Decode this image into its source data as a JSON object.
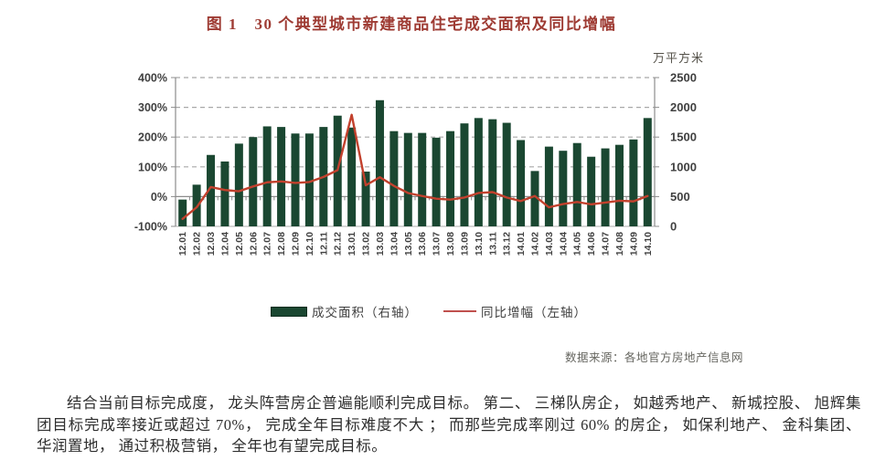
{
  "document": {
    "figure_title": "图 1　30 个典型城市新建商品住宅成交面积及同比增幅",
    "source_note": "数据来源：各地官方房地产信息网",
    "body_paragraph": "结合当前目标完成度， 龙头阵营房企普遍能顺利完成目标。 第二、 三梯队房企， 如越秀地产、 新城控股、 旭辉集团目标完成率接近或超过 70%， 完成全年目标难度不大 ； 而那些完成率刚过 60% 的房企， 如保利地产、 金科集团、 华润置地， 通过积极营销， 全年也有望完成目标。"
  },
  "chart_data": {
    "type": "bar",
    "subtype": "combo-bar-line-dual-axis",
    "title": "图 1　30 个典型城市新建商品住宅成交面积及同比增幅",
    "categories": [
      "12.01",
      "12.02",
      "12.03",
      "12.04",
      "12.05",
      "12.06",
      "12.07",
      "12.08",
      "12.09",
      "12.10",
      "12.11",
      "12.12",
      "13.01",
      "13.02",
      "13.03",
      "13.04",
      "13.05",
      "13.06",
      "13.07",
      "13.08",
      "13.09",
      "13.10",
      "13.11",
      "13.12",
      "14.01",
      "14.02",
      "14.03",
      "14.04",
      "14.05",
      "14.06",
      "14.07",
      "14.08",
      "14.09",
      "14.10"
    ],
    "series": [
      {
        "name": "成交面积（右轴）",
        "type": "bar",
        "axis": "right",
        "unit": "万平方米",
        "color": "#1a4731",
        "values": [
          450,
          700,
          1200,
          1090,
          1390,
          1500,
          1680,
          1670,
          1560,
          1560,
          1670,
          1860,
          1660,
          920,
          2120,
          1600,
          1570,
          1570,
          1490,
          1600,
          1730,
          1820,
          1800,
          1740,
          1450,
          930,
          1340,
          1270,
          1400,
          1170,
          1310,
          1370,
          1460,
          1820
        ]
      },
      {
        "name": "同比增幅（左轴）",
        "type": "line",
        "axis": "left",
        "unit": "%",
        "color": "#c2412d",
        "values": [
          -75,
          -36,
          32,
          22,
          18,
          34,
          48,
          51,
          46,
          49,
          66,
          89,
          275,
          38,
          65,
          36,
          12,
          2,
          -7,
          -10,
          -3,
          12,
          15,
          -3,
          -15,
          2,
          -36,
          -25,
          -18,
          -26,
          -20,
          -14,
          -16,
          2
        ]
      }
    ],
    "left_axis": {
      "min": -100,
      "max": 400,
      "tick_labels": [
        "-100%",
        "0%",
        "100%",
        "200%",
        "300%",
        "400%"
      ],
      "tick_values": [
        -100,
        0,
        100,
        200,
        300,
        400
      ]
    },
    "right_axis": {
      "min": 0,
      "max": 2500,
      "tick_labels": [
        "0",
        "500",
        "1000",
        "1500",
        "2000",
        "2500"
      ],
      "tick_values": [
        0,
        500,
        1000,
        1500,
        2000,
        2500
      ],
      "title": "万平方米"
    },
    "legend_position": "bottom",
    "grid": "horizontal-dashed",
    "colors": {
      "grid": "#a8a8a8",
      "axis": "#8c8c8c",
      "baseline": "#bdbdbd",
      "tick_text": "#404040",
      "title_text": "#9e3b33"
    }
  }
}
